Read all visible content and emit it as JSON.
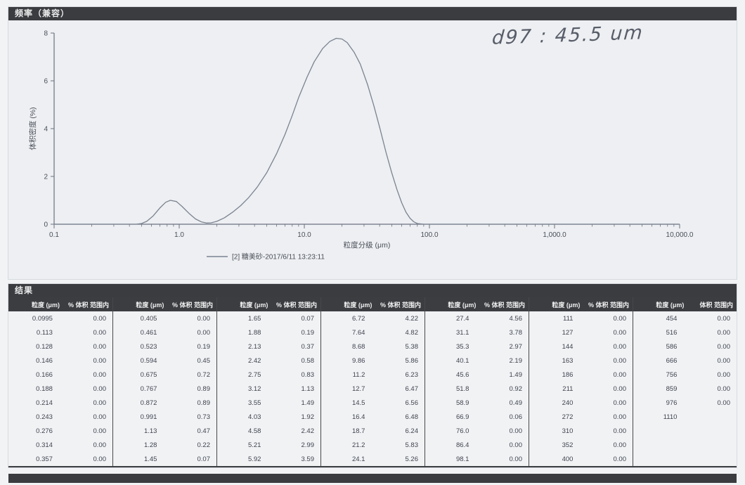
{
  "chart_panel": {
    "title": "频率（兼容）",
    "handwriting": "d97 : 45.5 um"
  },
  "chart_data": {
    "type": "line",
    "title": "频率（兼容）",
    "xlabel": "粒度分级 (μm)",
    "ylabel": "体积密度 (%)",
    "x_scale": "log",
    "xlim": [
      0.1,
      10000
    ],
    "ylim": [
      0,
      8
    ],
    "y_ticks": [
      0,
      2,
      4,
      6,
      8
    ],
    "x_tick_labels": [
      "0.1",
      "1.0",
      "10.0",
      "100.0",
      "1,000.0",
      "10,000.0"
    ],
    "grid": false,
    "legend_position": "bottom",
    "legend": "[2] 糖美砂-2017/6/11 13:23:11",
    "line_color": "#7b8391",
    "series": [
      {
        "name": "糖美砂-2017/6/11 13:23:11",
        "x": [
          0.1,
          0.3,
          0.45,
          0.5,
          0.55,
          0.62,
          0.7,
          0.78,
          0.85,
          0.95,
          1.05,
          1.2,
          1.35,
          1.5,
          1.65,
          1.8,
          2.0,
          2.3,
          2.7,
          3.1,
          3.6,
          4.2,
          5.0,
          6.0,
          7.0,
          8.0,
          9.0,
          10.5,
          12,
          14,
          16,
          18,
          20,
          22,
          25,
          28,
          32,
          36,
          40,
          45,
          50,
          55,
          60,
          65,
          70,
          75,
          80,
          90,
          100,
          1000,
          10000
        ],
        "y": [
          0,
          0,
          0,
          0.03,
          0.12,
          0.35,
          0.68,
          0.92,
          1.0,
          0.95,
          0.75,
          0.45,
          0.22,
          0.1,
          0.05,
          0.06,
          0.12,
          0.27,
          0.52,
          0.78,
          1.12,
          1.55,
          2.15,
          2.95,
          3.75,
          4.55,
          5.3,
          6.15,
          6.8,
          7.35,
          7.65,
          7.78,
          7.75,
          7.6,
          7.2,
          6.7,
          5.85,
          4.95,
          4.05,
          3.0,
          2.15,
          1.45,
          0.9,
          0.5,
          0.25,
          0.1,
          0.03,
          0,
          0,
          0,
          0
        ]
      }
    ],
    "annotations": [
      "d97 : 45.5 um"
    ]
  },
  "results_table": {
    "title": "结果",
    "col_headers": {
      "size": "粒度 (μm)",
      "pct": "% 体积 范围内",
      "pct_last": "体积 范围内"
    },
    "groups": [
      {
        "rows": [
          [
            "0.0995",
            "0.00"
          ],
          [
            "0.113",
            "0.00"
          ],
          [
            "0.128",
            "0.00"
          ],
          [
            "0.146",
            "0.00"
          ],
          [
            "0.166",
            "0.00"
          ],
          [
            "0.188",
            "0.00"
          ],
          [
            "0.214",
            "0.00"
          ],
          [
            "0.243",
            "0.00"
          ],
          [
            "0.276",
            "0.00"
          ],
          [
            "0.314",
            "0.00"
          ],
          [
            "0.357",
            "0.00"
          ]
        ]
      },
      {
        "rows": [
          [
            "0.405",
            "0.00"
          ],
          [
            "0.461",
            "0.00"
          ],
          [
            "0.523",
            "0.19"
          ],
          [
            "0.594",
            "0.45"
          ],
          [
            "0.675",
            "0.72"
          ],
          [
            "0.767",
            "0.89"
          ],
          [
            "0.872",
            "0.89"
          ],
          [
            "0.991",
            "0.73"
          ],
          [
            "1.13",
            "0.47"
          ],
          [
            "1.28",
            "0.22"
          ],
          [
            "1.45",
            "0.07"
          ]
        ]
      },
      {
        "rows": [
          [
            "1.65",
            "0.07"
          ],
          [
            "1.88",
            "0.19"
          ],
          [
            "2.13",
            "0.37"
          ],
          [
            "2.42",
            "0.58"
          ],
          [
            "2.75",
            "0.83"
          ],
          [
            "3.12",
            "1.13"
          ],
          [
            "3.55",
            "1.49"
          ],
          [
            "4.03",
            "1.92"
          ],
          [
            "4.58",
            "2.42"
          ],
          [
            "5.21",
            "2.99"
          ],
          [
            "5.92",
            "3.59"
          ]
        ]
      },
      {
        "rows": [
          [
            "6.72",
            "4.22"
          ],
          [
            "7.64",
            "4.82"
          ],
          [
            "8.68",
            "5.38"
          ],
          [
            "9.86",
            "5.86"
          ],
          [
            "11.2",
            "6.23"
          ],
          [
            "12.7",
            "6.47"
          ],
          [
            "14.5",
            "6.56"
          ],
          [
            "16.4",
            "6.48"
          ],
          [
            "18.7",
            "6.24"
          ],
          [
            "21.2",
            "5.83"
          ],
          [
            "24.1",
            "5.26"
          ]
        ]
      },
      {
        "rows": [
          [
            "27.4",
            "4.56"
          ],
          [
            "31.1",
            "3.78"
          ],
          [
            "35.3",
            "2.97"
          ],
          [
            "40.1",
            "2.19"
          ],
          [
            "45.6",
            "1.49"
          ],
          [
            "51.8",
            "0.92"
          ],
          [
            "58.9",
            "0.49"
          ],
          [
            "66.9",
            "0.06"
          ],
          [
            "76.0",
            "0.00"
          ],
          [
            "86.4",
            "0.00"
          ],
          [
            "98.1",
            "0.00"
          ]
        ]
      },
      {
        "rows": [
          [
            "111",
            "0.00"
          ],
          [
            "127",
            "0.00"
          ],
          [
            "144",
            "0.00"
          ],
          [
            "163",
            "0.00"
          ],
          [
            "186",
            "0.00"
          ],
          [
            "211",
            "0.00"
          ],
          [
            "240",
            "0.00"
          ],
          [
            "272",
            "0.00"
          ],
          [
            "310",
            "0.00"
          ],
          [
            "352",
            "0.00"
          ],
          [
            "400",
            "0.00"
          ]
        ]
      },
      {
        "rows": [
          [
            "454",
            "0.00"
          ],
          [
            "516",
            "0.00"
          ],
          [
            "586",
            "0.00"
          ],
          [
            "666",
            "0.00"
          ],
          [
            "756",
            "0.00"
          ],
          [
            "859",
            "0.00"
          ],
          [
            "976",
            "0.00"
          ],
          [
            "1110",
            ""
          ],
          [
            "",
            ""
          ],
          [
            "",
            ""
          ],
          [
            "",
            ""
          ]
        ]
      }
    ]
  }
}
